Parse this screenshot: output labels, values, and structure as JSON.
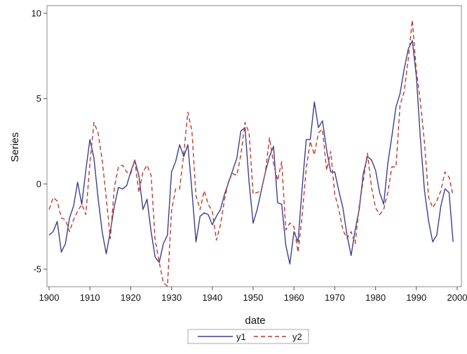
{
  "chart_data": {
    "type": "line",
    "title": "",
    "xlabel": "date",
    "ylabel": "Series",
    "xlim": [
      1900,
      2000
    ],
    "ylim": [
      -6,
      10
    ],
    "x_ticks": [
      "1900",
      "1910",
      "1920",
      "1930",
      "1940",
      "1950",
      "1960",
      "1970",
      "1980",
      "1990",
      "2000"
    ],
    "y_ticks": [
      "-5",
      "0",
      "5",
      "10"
    ],
    "grid": false,
    "legend_position": "bottom-center",
    "x": [
      1900,
      1901,
      1902,
      1903,
      1904,
      1905,
      1906,
      1907,
      1908,
      1909,
      1910,
      1911,
      1912,
      1913,
      1914,
      1915,
      1916,
      1917,
      1918,
      1919,
      1920,
      1921,
      1922,
      1923,
      1924,
      1925,
      1926,
      1927,
      1928,
      1929,
      1930,
      1931,
      1932,
      1933,
      1934,
      1935,
      1936,
      1937,
      1938,
      1939,
      1940,
      1941,
      1942,
      1943,
      1944,
      1945,
      1946,
      1947,
      1948,
      1949,
      1950,
      1951,
      1952,
      1953,
      1954,
      1955,
      1956,
      1957,
      1958,
      1959,
      1960,
      1961,
      1962,
      1963,
      1964,
      1965,
      1966,
      1967,
      1968,
      1969,
      1970,
      1971,
      1972,
      1973,
      1974,
      1975,
      1976,
      1977,
      1978,
      1979,
      1980,
      1981,
      1982,
      1983,
      1984,
      1985,
      1986,
      1987,
      1988,
      1989,
      1990,
      1991,
      1992,
      1993,
      1994,
      1995,
      1996,
      1997,
      1998,
      1999
    ],
    "series": [
      {
        "name": "y1",
        "color": "#3b3f8f",
        "dash": "solid",
        "values": [
          -3.0,
          -2.8,
          -2.2,
          -4.0,
          -3.5,
          -2.0,
          -1.3,
          0.1,
          -1.2,
          0.8,
          2.6,
          1.5,
          -0.8,
          -2.8,
          -4.1,
          -2.8,
          -1.3,
          -0.2,
          -0.3,
          -0.1,
          0.7,
          1.4,
          0.5,
          -1.5,
          -0.9,
          -2.8,
          -4.3,
          -4.6,
          -3.5,
          -3.0,
          0.7,
          1.3,
          2.3,
          1.6,
          2.3,
          -0.4,
          -3.4,
          -1.9,
          -1.7,
          -1.8,
          -2.4,
          -1.9,
          -1.5,
          -0.6,
          0.1,
          0.8,
          1.5,
          3.1,
          3.3,
          0.1,
          -2.3,
          -1.5,
          -0.4,
          0.7,
          1.6,
          2.2,
          -1.1,
          -1.2,
          -3.6,
          -4.7,
          -2.8,
          -3.4,
          -0.3,
          2.6,
          2.6,
          4.8,
          3.3,
          3.7,
          2.0,
          0.7,
          0.7,
          -0.4,
          -1.4,
          -3.0,
          -4.2,
          -2.7,
          -1.5,
          0.6,
          1.6,
          1.4,
          0.8,
          -0.5,
          -1.2,
          1.2,
          2.8,
          4.5,
          5.3,
          6.7,
          7.9,
          8.4,
          6.3,
          2.6,
          -0.4,
          -2.2,
          -3.4,
          -3.0,
          -1.3,
          -0.3,
          -0.5,
          -3.4
        ]
      },
      {
        "name": "y2",
        "color": "#c0392b",
        "dash": "dashed",
        "values": [
          -1.5,
          -0.8,
          -1.0,
          -2.0,
          -2.1,
          -2.8,
          -2.1,
          -1.6,
          -1.2,
          -1.8,
          1.2,
          3.6,
          3.0,
          1.4,
          -0.8,
          -3.2,
          -0.2,
          1.0,
          1.1,
          0.7,
          0.6,
          1.4,
          -0.5,
          0.7,
          1.1,
          0.5,
          -3.3,
          -4.6,
          -5.8,
          -6.0,
          -1.6,
          -0.3,
          -0.3,
          1.8,
          4.2,
          3.1,
          -0.7,
          -1.5,
          -0.4,
          -1.2,
          -1.6,
          -3.3,
          -2.4,
          -0.9,
          0.2,
          0.6,
          0.5,
          1.7,
          3.6,
          3.0,
          -0.6,
          -0.5,
          -0.4,
          0.7,
          2.7,
          1.2,
          0.2,
          1.3,
          -2.7,
          -2.3,
          -2.5,
          -4.0,
          -1.9,
          0.9,
          2.5,
          1.7,
          3.0,
          3.2,
          0.8,
          1.9,
          -0.6,
          -1.5,
          -2.7,
          -3.2,
          -2.8,
          -3.5,
          -1.3,
          0.2,
          1.8,
          -0.2,
          -1.4,
          -1.8,
          -1.5,
          -0.5,
          1.0,
          1.0,
          4.6,
          5.4,
          7.3,
          9.6,
          6.6,
          4.8,
          2.4,
          -0.8,
          -1.4,
          -1.0,
          -0.4,
          0.7,
          0.4,
          -0.7
        ]
      }
    ]
  }
}
